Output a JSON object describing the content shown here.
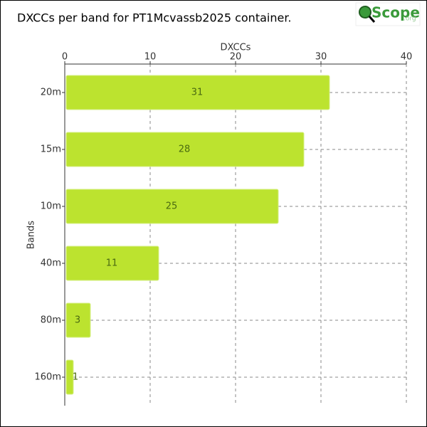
{
  "chart_data": {
    "type": "bar",
    "orientation": "horizontal",
    "title": "DXCCs per band for PT1Mcvassb2025 container.",
    "x_label": "DXCCs",
    "y_label": "Bands",
    "categories": [
      "20m",
      "15m",
      "10m",
      "40m",
      "80m",
      "160m"
    ],
    "values": [
      31,
      28,
      25,
      11,
      3,
      1
    ],
    "color": "#bce32f",
    "xlim": [
      0,
      40
    ],
    "xticks": [
      0,
      10,
      20,
      30,
      40
    ],
    "grid": true,
    "logo": {
      "name": "Scope",
      "suffix": ".org"
    }
  }
}
